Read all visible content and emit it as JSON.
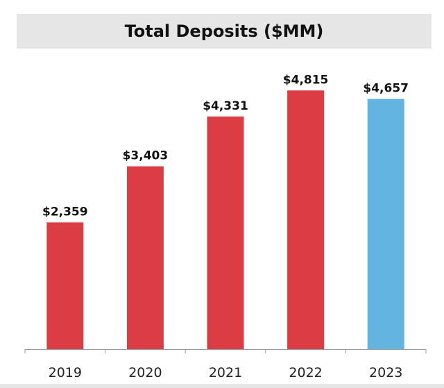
{
  "chart_data": {
    "type": "bar",
    "title": "Total Deposits ($MM)",
    "categories": [
      "2019",
      "2020",
      "2021",
      "2022",
      "2023"
    ],
    "values": [
      2359,
      3403,
      4331,
      4815,
      4657
    ],
    "value_labels": [
      "$2,359",
      "$3,403",
      "$4,331",
      "$4,815",
      "$4,657"
    ],
    "ylim": [
      0,
      5000
    ],
    "grid": false,
    "legend": "none",
    "colors": {
      "bar_default": "#dc3c43",
      "bar_highlight": "#64b4e1",
      "axis": "#999999"
    },
    "highlight_index": 4
  }
}
